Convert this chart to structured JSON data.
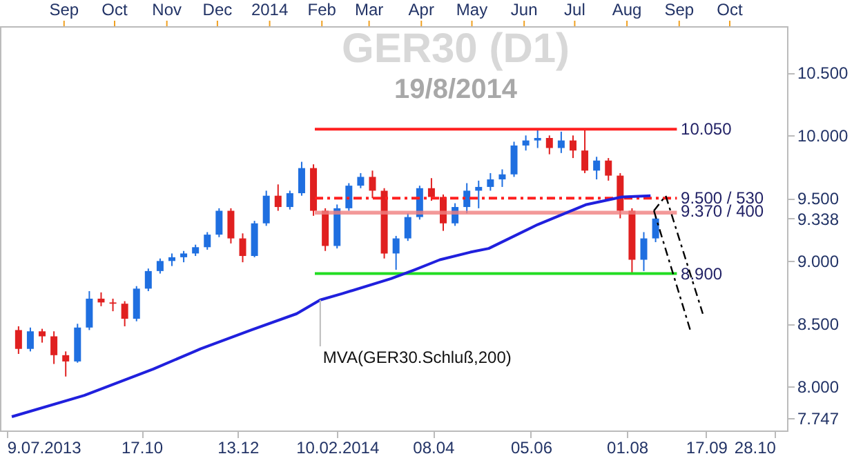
{
  "chart_data": {
    "type": "candlestick",
    "title": "GER30 (D1)",
    "subtitle": "19/8/2014",
    "x": [
      "2013-08-05",
      "2013-08-12",
      "2013-08-19",
      "2013-08-26",
      "2013-09-02",
      "2013-09-09",
      "2013-09-16",
      "2013-09-23",
      "2013-09-30",
      "2013-10-07",
      "2013-10-14",
      "2013-10-21",
      "2013-10-28",
      "2013-11-04",
      "2013-11-11",
      "2013-11-18",
      "2013-11-25",
      "2013-12-02",
      "2013-12-09",
      "2013-12-16",
      "2013-12-23",
      "2013-12-30",
      "2014-01-06",
      "2014-01-13",
      "2014-01-20",
      "2014-01-27",
      "2014-02-03",
      "2014-02-10",
      "2014-02-17",
      "2014-02-24",
      "2014-03-03",
      "2014-03-10",
      "2014-03-17",
      "2014-03-24",
      "2014-03-31",
      "2014-04-07",
      "2014-04-14",
      "2014-04-21",
      "2014-04-28",
      "2014-05-05",
      "2014-05-12",
      "2014-05-19",
      "2014-05-26",
      "2014-06-02",
      "2014-06-09",
      "2014-06-16",
      "2014-06-23",
      "2014-06-30",
      "2014-07-07",
      "2014-07-14",
      "2014-07-21",
      "2014-07-28",
      "2014-08-04",
      "2014-08-11",
      "2014-08-18"
    ],
    "ohlc": [
      [
        8.45,
        8.48,
        8.26,
        8.3
      ],
      [
        8.3,
        8.47,
        8.28,
        8.44
      ],
      [
        8.44,
        8.46,
        8.35,
        8.4
      ],
      [
        8.4,
        8.44,
        8.18,
        8.25
      ],
      [
        8.25,
        8.28,
        8.08,
        8.2
      ],
      [
        8.2,
        8.5,
        8.19,
        8.47
      ],
      [
        8.47,
        8.76,
        8.45,
        8.7
      ],
      [
        8.7,
        8.75,
        8.64,
        8.67
      ],
      [
        8.67,
        8.7,
        8.6,
        8.66
      ],
      [
        8.66,
        8.68,
        8.48,
        8.54
      ],
      [
        8.54,
        8.8,
        8.52,
        8.78
      ],
      [
        8.78,
        8.94,
        8.76,
        8.92
      ],
      [
        8.92,
        9.02,
        8.9,
        9.0
      ],
      [
        9.0,
        9.06,
        8.96,
        9.03
      ],
      [
        9.03,
        9.08,
        8.99,
        9.06
      ],
      [
        9.06,
        9.13,
        9.04,
        9.11
      ],
      [
        9.11,
        9.23,
        9.09,
        9.21
      ],
      [
        9.21,
        9.42,
        9.19,
        9.4
      ],
      [
        9.4,
        9.42,
        9.14,
        9.18
      ],
      [
        9.18,
        9.22,
        8.99,
        9.04
      ],
      [
        9.04,
        9.32,
        9.03,
        9.3
      ],
      [
        9.3,
        9.56,
        9.28,
        9.52
      ],
      [
        9.52,
        9.61,
        9.4,
        9.43
      ],
      [
        9.43,
        9.56,
        9.41,
        9.54
      ],
      [
        9.54,
        9.79,
        9.52,
        9.74
      ],
      [
        9.74,
        9.77,
        9.36,
        9.4
      ],
      [
        9.4,
        9.42,
        9.08,
        9.12
      ],
      [
        9.12,
        9.45,
        9.1,
        9.42
      ],
      [
        9.42,
        9.62,
        9.4,
        9.6
      ],
      [
        9.6,
        9.7,
        9.58,
        9.67
      ],
      [
        9.67,
        9.72,
        9.5,
        9.56
      ],
      [
        9.56,
        9.58,
        9.02,
        9.06
      ],
      [
        9.06,
        9.2,
        8.93,
        9.18
      ],
      [
        9.18,
        9.38,
        9.16,
        9.35
      ],
      [
        9.35,
        9.6,
        9.33,
        9.58
      ],
      [
        9.58,
        9.66,
        9.48,
        9.51
      ],
      [
        9.51,
        9.53,
        9.24,
        9.3
      ],
      [
        9.3,
        9.46,
        9.28,
        9.43
      ],
      [
        9.43,
        9.62,
        9.38,
        9.56
      ],
      [
        9.56,
        9.64,
        9.42,
        9.59
      ],
      [
        9.59,
        9.7,
        9.56,
        9.65
      ],
      [
        9.65,
        9.73,
        9.59,
        9.69
      ],
      [
        9.69,
        9.95,
        9.67,
        9.92
      ],
      [
        9.92,
        10.0,
        9.88,
        9.96
      ],
      [
        9.96,
        10.05,
        9.9,
        9.98
      ],
      [
        9.98,
        10.0,
        9.85,
        9.9
      ],
      [
        9.9,
        10.03,
        9.86,
        9.96
      ],
      [
        9.96,
        10.0,
        9.82,
        9.88
      ],
      [
        9.88,
        10.05,
        9.7,
        9.72
      ],
      [
        9.72,
        9.83,
        9.65,
        9.8
      ],
      [
        9.8,
        9.82,
        9.64,
        9.68
      ],
      [
        9.68,
        9.7,
        9.34,
        9.4
      ],
      [
        9.4,
        9.42,
        8.9,
        9.01
      ],
      [
        9.01,
        9.23,
        8.92,
        9.18
      ],
      [
        9.18,
        9.36,
        9.15,
        9.338
      ]
    ],
    "colors": [
      "#e02020",
      "#1f6fe0",
      "#e02020",
      "#e02020",
      "#e02020",
      "#1f6fe0",
      "#1f6fe0",
      "#e02020",
      "#e02020",
      "#e02020",
      "#1f6fe0",
      "#1f6fe0",
      "#1f6fe0",
      "#1f6fe0",
      "#1f6fe0",
      "#1f6fe0",
      "#1f6fe0",
      "#1f6fe0",
      "#e02020",
      "#e02020",
      "#1f6fe0",
      "#1f6fe0",
      "#e02020",
      "#1f6fe0",
      "#1f6fe0",
      "#e02020",
      "#e02020",
      "#1f6fe0",
      "#1f6fe0",
      "#1f6fe0",
      "#e02020",
      "#e02020",
      "#1f6fe0",
      "#1f6fe0",
      "#1f6fe0",
      "#e02020",
      "#e02020",
      "#1f6fe0",
      "#1f6fe0",
      "#1f6fe0",
      "#1f6fe0",
      "#1f6fe0",
      "#1f6fe0",
      "#1f6fe0",
      "#1f6fe0",
      "#e02020",
      "#1f6fe0",
      "#e02020",
      "#e02020",
      "#1f6fe0",
      "#e02020",
      "#e02020",
      "#e02020",
      "#1f6fe0",
      "#1f6fe0"
    ],
    "series": [
      {
        "type": "line",
        "color": "#2020dd",
        "x": [
          "2013-08-01",
          "2013-09-13",
          "2013-10-24",
          "2013-11-21",
          "2013-12-21",
          "2014-01-17",
          "2014-01-31",
          "2014-02-13",
          "2014-03-14",
          "2014-03-28",
          "2014-04-12",
          "2014-04-30",
          "2014-05-11",
          "2014-06-09",
          "2014-07-08",
          "2014-07-29",
          "2014-08-15"
        ],
        "values": [
          7.76,
          7.93,
          8.14,
          8.3,
          8.45,
          8.58,
          8.69,
          8.74,
          8.86,
          8.93,
          9.01,
          9.07,
          9.1,
          9.29,
          9.45,
          9.51,
          9.52
        ]
      },
      {
        "type": "line",
        "color": "#000000",
        "line_style": "dashed",
        "x": [
          "2014-08-17",
          "2014-08-24",
          "2014-09-15"
        ],
        "values": [
          9.4,
          9.52,
          8.58
        ]
      },
      {
        "type": "line",
        "color": "#000000",
        "line_style": "dashed",
        "x": [
          "2014-08-17",
          "2014-09-08"
        ],
        "values": [
          9.4,
          8.43
        ]
      }
    ],
    "xlim": [
      "2013-07-25",
      "2014-11-04"
    ],
    "xticks": [
      {
        "value": "2013-07-29",
        "label": "9.07.2013"
      },
      {
        "value": "2013-10-17",
        "label": "17.10"
      },
      {
        "value": "2013-12-13",
        "label": "13.12"
      },
      {
        "value": "2014-02-10",
        "label": "10.02.2014"
      },
      {
        "value": "2014-04-08",
        "label": "08.04"
      },
      {
        "value": "2014-06-05",
        "label": "05.06"
      },
      {
        "value": "2014-08-01",
        "label": "01.08"
      },
      {
        "value": "2014-09-17",
        "label": "17.09"
      },
      {
        "value": "2014-10-28",
        "label": "28.10"
      }
    ],
    "x2lim": [
      "2013-07-25",
      "2014-11-04"
    ],
    "x2ticks": [
      {
        "value": "2013-09-01",
        "label": "Sep"
      },
      {
        "value": "2013-10-01",
        "label": "Oct"
      },
      {
        "value": "2013-11-01",
        "label": "Nov"
      },
      {
        "value": "2013-12-01",
        "label": "Dec"
      },
      {
        "value": "2014-01-01",
        "label": "2014"
      },
      {
        "value": "2014-02-01",
        "label": "Feb"
      },
      {
        "value": "2014-03-01",
        "label": "Mar"
      },
      {
        "value": "2014-04-01",
        "label": "Apr"
      },
      {
        "value": "2014-05-01",
        "label": "May"
      },
      {
        "value": "2014-06-01",
        "label": "Jun"
      },
      {
        "value": "2014-07-01",
        "label": "Jul"
      },
      {
        "value": "2014-08-01",
        "label": "Aug"
      },
      {
        "value": "2014-09-01",
        "label": "Sep"
      },
      {
        "value": "2014-10-01",
        "label": "Oct"
      }
    ],
    "ylim": [
      7.65,
      10.87
    ],
    "yticks": [
      {
        "value": 7.747,
        "label": "7.747"
      },
      {
        "value": 8,
        "label": "8.000"
      },
      {
        "value": 8.5,
        "label": "8.500"
      },
      {
        "value": 9,
        "label": "9.000"
      },
      {
        "value": 9.338,
        "label": "9.338"
      },
      {
        "value": 9.5,
        "label": "9.500"
      },
      {
        "value": 10,
        "label": "10.000"
      },
      {
        "value": 10.5,
        "label": "10.500"
      }
    ],
    "ref_lines": [
      {
        "axis": "y",
        "value": 10.05,
        "label": "10.050",
        "color": "#ff2020"
      },
      {
        "axis": "y",
        "value": 9.5,
        "label": "9.500 / 530",
        "color": "#ff2020",
        "line_style": "dashed"
      },
      {
        "axis": "y",
        "value": 8.9,
        "label": "8.900",
        "color": "#22dd22"
      }
    ],
    "bands": [
      {
        "axis": "y",
        "from": 9.37,
        "to": 9.4,
        "label": "9.370 / 400",
        "color": "#f08080"
      }
    ],
    "annotations": [
      {
        "text": "MVA(GER30.Schluß,200)",
        "x": "2014-01-31",
        "y": 8.69
      }
    ],
    "grid": false
  }
}
